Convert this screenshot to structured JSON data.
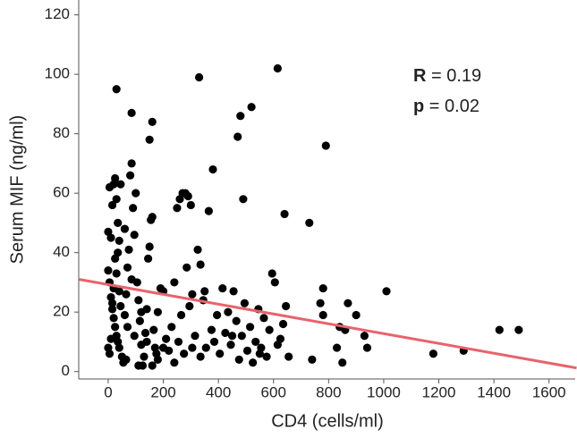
{
  "chart_data": {
    "type": "scatter",
    "x_label": "CD4 (cells/ml)",
    "y_label": "Serum MIF (ng/ml)",
    "color": "#000000",
    "x": [
      30,
      85,
      330,
      480,
      520,
      615,
      470,
      160,
      150,
      790,
      380,
      490,
      640,
      730,
      1010,
      1180,
      1290,
      1420,
      1490,
      850,
      740,
      930,
      940,
      900,
      860,
      840,
      780,
      770,
      780,
      830,
      870,
      0,
      5,
      10,
      15,
      20,
      25,
      30,
      35,
      40,
      0,
      5,
      10,
      15,
      20,
      25,
      30,
      35,
      40,
      0,
      5,
      10,
      15,
      20,
      25,
      30,
      35,
      40,
      45,
      50,
      55,
      60,
      65,
      70,
      75,
      80,
      85,
      90,
      95,
      100,
      105,
      110,
      115,
      120,
      125,
      130,
      135,
      140,
      145,
      150,
      155,
      160,
      165,
      170,
      175,
      180,
      190,
      200,
      210,
      220,
      230,
      240,
      250,
      260,
      270,
      280,
      290,
      300,
      255,
      265,
      275,
      285,
      295,
      305,
      315,
      325,
      335,
      345,
      355,
      365,
      375,
      385,
      395,
      405,
      415,
      425,
      435,
      445,
      455,
      465,
      475,
      485,
      495,
      505,
      515,
      525,
      535,
      545,
      555,
      565,
      575,
      585,
      595,
      605,
      615,
      625,
      635,
      645,
      655,
      335,
      305,
      240,
      200,
      180,
      160,
      140,
      120,
      95,
      65,
      60,
      45,
      70,
      85,
      110,
      350,
      450,
      550
    ],
    "values": [
      95,
      87,
      99,
      86,
      89,
      102,
      79,
      84,
      78,
      76,
      68,
      58,
      53,
      50,
      27,
      6,
      7,
      14,
      14,
      3,
      4,
      12,
      8,
      19,
      14,
      15,
      28,
      23,
      19,
      8,
      23,
      47,
      62,
      45,
      56,
      63,
      65,
      58,
      50,
      44,
      34,
      30,
      25,
      21,
      18,
      15,
      12,
      10,
      8,
      8,
      6,
      11,
      23,
      28,
      38,
      33,
      40,
      27,
      22,
      5,
      3,
      19,
      26,
      35,
      41,
      66,
      70,
      55,
      46,
      60,
      30,
      24,
      17,
      9,
      2,
      5,
      13,
      21,
      38,
      42,
      51,
      52,
      14,
      8,
      6,
      20,
      28,
      27,
      11,
      7,
      15,
      30,
      55,
      58,
      60,
      60,
      59,
      56,
      10,
      19,
      6,
      35,
      22,
      26,
      12,
      41,
      36,
      24,
      8,
      54,
      14,
      10,
      19,
      6,
      28,
      13,
      20,
      9,
      27,
      17,
      4,
      12,
      23,
      7,
      15,
      3,
      10,
      21,
      8,
      18,
      5,
      14,
      33,
      30,
      9,
      11,
      16,
      22,
      5,
      5,
      8,
      3,
      8,
      4,
      2,
      10,
      20,
      12,
      4,
      48,
      63,
      15,
      31,
      2,
      27,
      12,
      6
    ],
    "fit": {
      "color": "#e8636b",
      "x": [
        -105,
        1700
      ],
      "y": [
        31,
        1.2
      ]
    },
    "annotations": [
      {
        "symbol": "R",
        "text": "= 0.19"
      },
      {
        "symbol": "p",
        "text": "= 0.02"
      }
    ],
    "xlim": [
      -107,
      1695
    ],
    "ylim": [
      -2.5,
      125
    ],
    "xticks": [
      0,
      200,
      400,
      600,
      800,
      1000,
      1200,
      1400,
      1600
    ],
    "yticks": [
      0,
      20,
      40,
      60,
      80,
      100,
      120
    ]
  }
}
